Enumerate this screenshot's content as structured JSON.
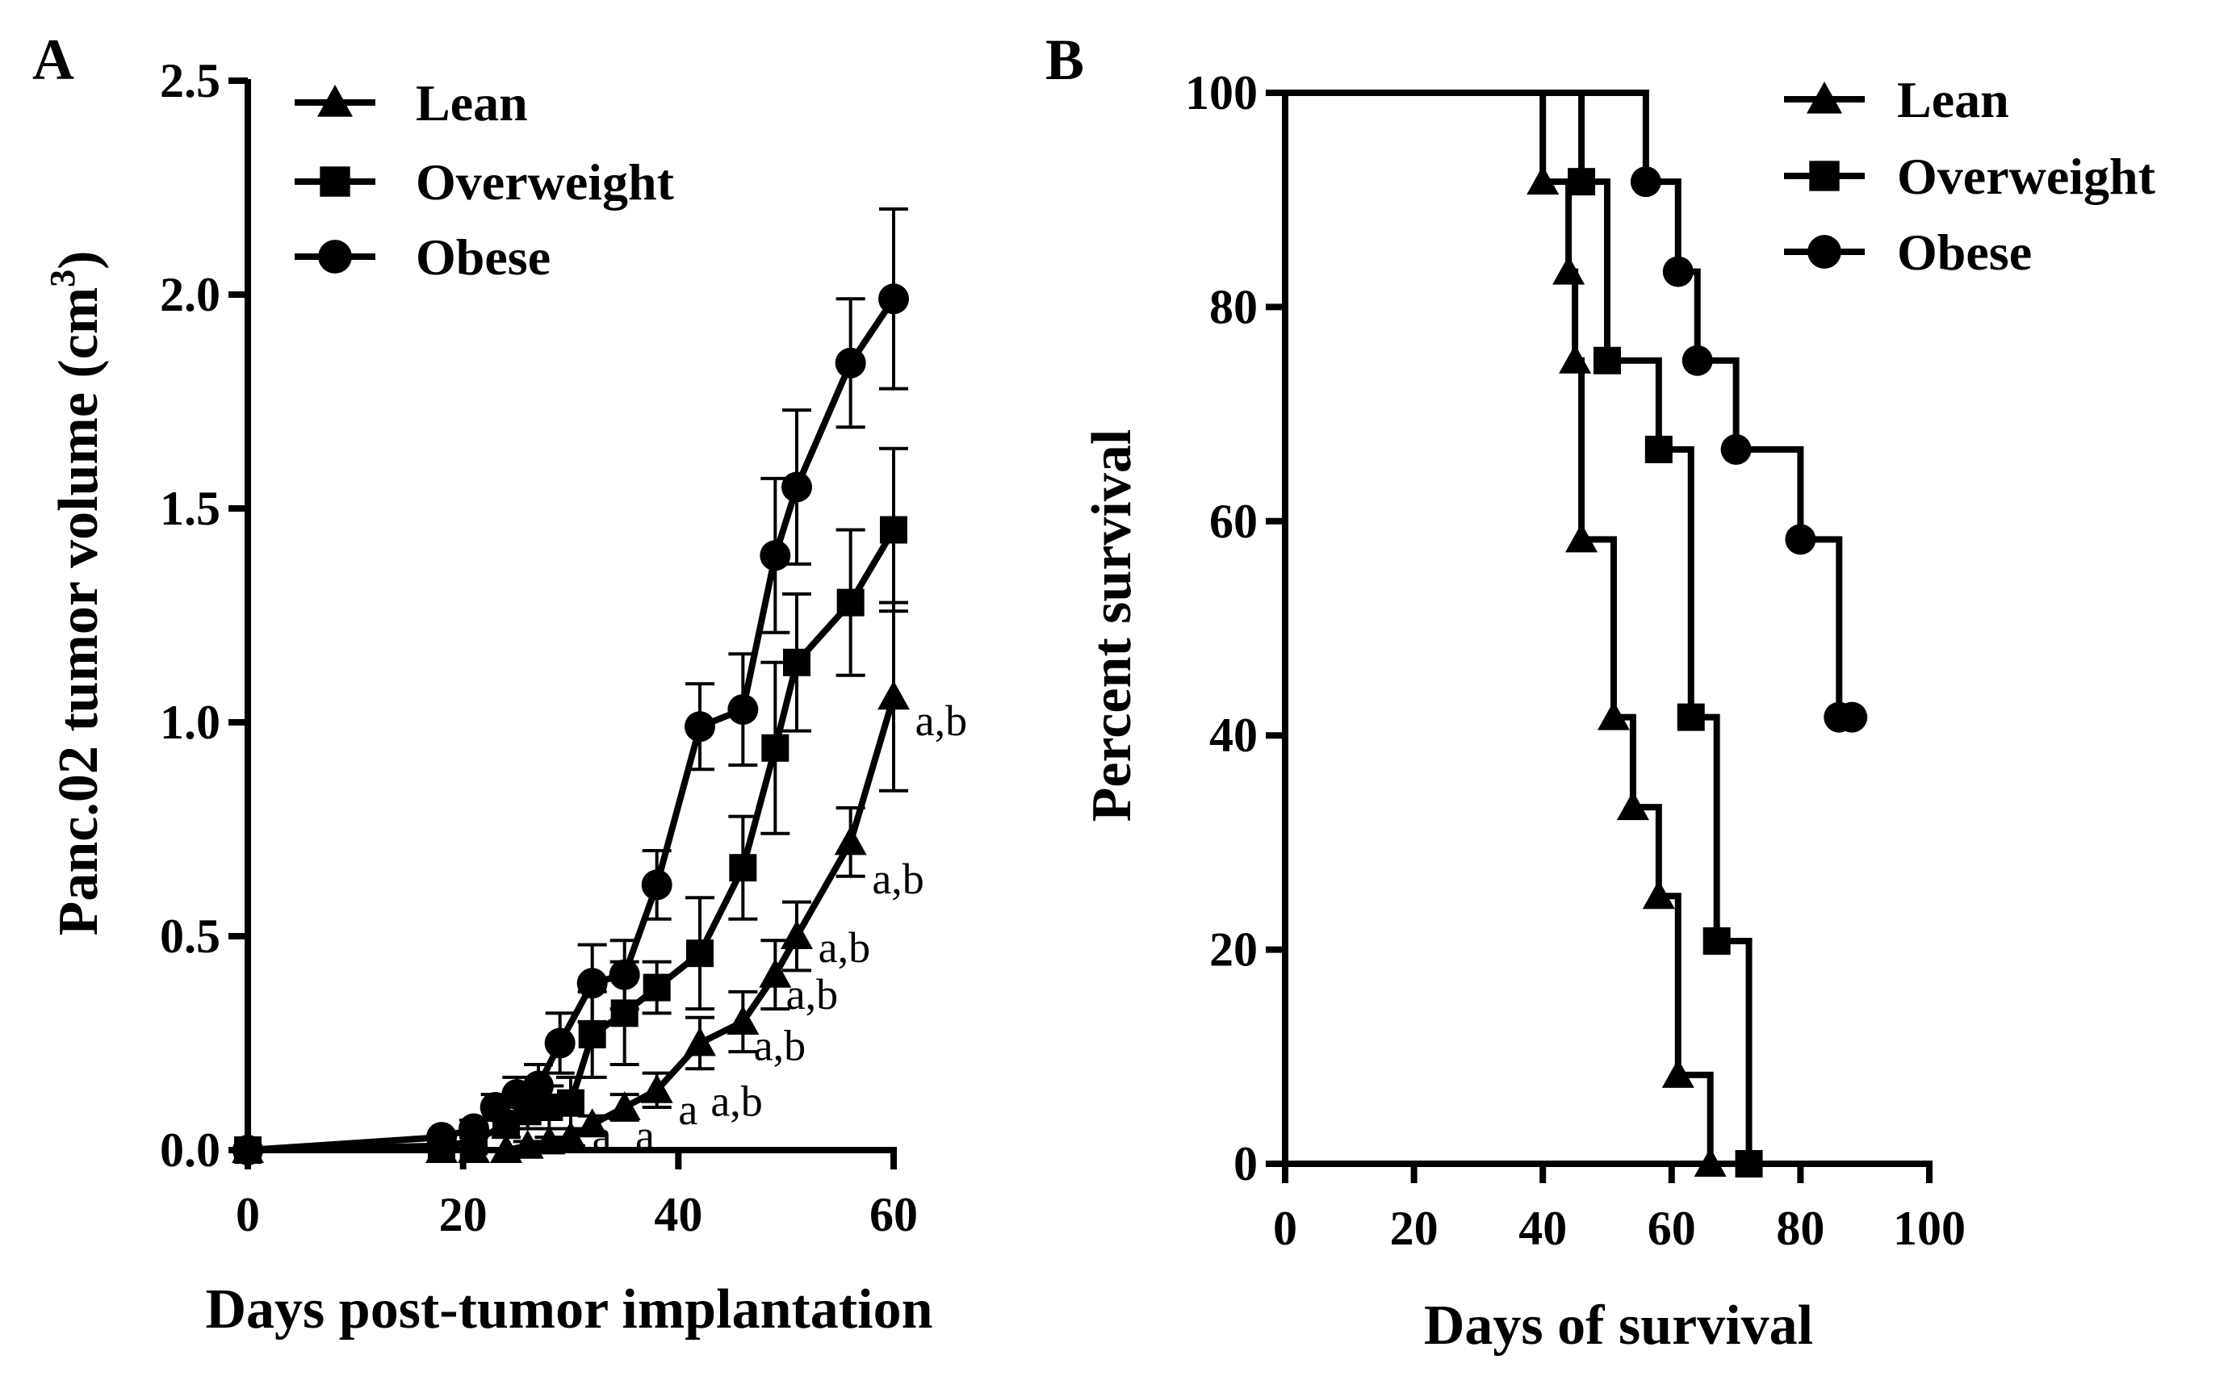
{
  "chart_data": [
    {
      "panel": "A",
      "type": "line",
      "xlabel": "Days post-tumor implantation",
      "ylabel": "Panc.02 tumor volume (cm",
      "ylabel_sup": "3",
      "ylabel_close": ")",
      "xlim": [
        0,
        60
      ],
      "ylim": [
        0,
        2.5
      ],
      "xticks": [
        "0",
        "20",
        "40",
        "60"
      ],
      "yticks": [
        "0.0",
        "0.5",
        "1.0",
        "1.5",
        "2.0",
        "2.5"
      ],
      "legend_position": "top-left",
      "series": [
        {
          "name": "Lean",
          "marker": "triangle",
          "x": [
            0,
            18,
            21,
            24,
            26,
            28,
            30,
            32,
            35,
            38,
            42,
            46,
            49,
            51,
            56,
            60
          ],
          "y": [
            0.0,
            0.0,
            0.0,
            0.0,
            0.01,
            0.02,
            0.03,
            0.06,
            0.1,
            0.14,
            0.25,
            0.3,
            0.41,
            0.5,
            0.72,
            1.06
          ],
          "err": [
            0,
            0,
            0,
            0,
            0.01,
            0.01,
            0.02,
            0.02,
            0.03,
            0.04,
            0.06,
            0.07,
            0.08,
            0.08,
            0.08,
            0.22
          ]
        },
        {
          "name": "Overweight",
          "marker": "square",
          "x": [
            0,
            18,
            21,
            24,
            26,
            28,
            30,
            32,
            35,
            38,
            42,
            46,
            49,
            51,
            56,
            60
          ],
          "y": [
            0.0,
            0.01,
            0.02,
            0.06,
            0.09,
            0.1,
            0.11,
            0.27,
            0.32,
            0.38,
            0.46,
            0.66,
            0.94,
            1.14,
            1.28,
            1.45
          ],
          "err": [
            0,
            0.01,
            0.02,
            0.03,
            0.04,
            0.05,
            0.06,
            0.1,
            0.12,
            0.06,
            0.13,
            0.12,
            0.2,
            0.16,
            0.17,
            0.19
          ]
        },
        {
          "name": "Obese",
          "marker": "circle",
          "x": [
            0,
            18,
            21,
            23,
            25,
            27,
            29,
            32,
            35,
            38,
            42,
            46,
            49,
            51,
            56,
            60
          ],
          "y": [
            0.0,
            0.03,
            0.05,
            0.1,
            0.13,
            0.15,
            0.25,
            0.39,
            0.41,
            0.62,
            0.99,
            1.03,
            1.39,
            1.55,
            1.84,
            1.99
          ],
          "err": [
            0,
            0.01,
            0.02,
            0.03,
            0.04,
            0.05,
            0.07,
            0.09,
            0.08,
            0.08,
            0.1,
            0.13,
            0.18,
            0.18,
            0.15,
            0.21
          ]
        }
      ],
      "annotations": [
        {
          "text": "a",
          "x": 32,
          "y": 0.0
        },
        {
          "text": "a",
          "x": 36,
          "y": 0.0
        },
        {
          "text": "a",
          "x": 40,
          "y": 0.06
        },
        {
          "text": "a,b",
          "x": 43,
          "y": 0.08
        },
        {
          "text": "a,b",
          "x": 47,
          "y": 0.21
        },
        {
          "text": "a,b",
          "x": 50,
          "y": 0.33
        },
        {
          "text": "a,b",
          "x": 53,
          "y": 0.44
        },
        {
          "text": "a,b",
          "x": 58,
          "y": 0.6
        },
        {
          "text": "a,b",
          "x": 62,
          "y": 0.97
        }
      ]
    },
    {
      "panel": "B",
      "type": "line",
      "subtype": "kaplan-meier",
      "xlabel": "Days of survival",
      "ylabel": "Percent survival",
      "xlim": [
        0,
        100
      ],
      "ylim": [
        0,
        100
      ],
      "xticks": [
        "0",
        "20",
        "40",
        "60",
        "80",
        "100"
      ],
      "yticks": [
        "0",
        "20",
        "40",
        "60",
        "80",
        "100"
      ],
      "legend_position": "top-right",
      "series": [
        {
          "name": "Lean",
          "marker": "triangle",
          "steps": [
            [
              0,
              100
            ],
            [
              40,
              91.7
            ],
            [
              44,
              83.3
            ],
            [
              45,
              75
            ],
            [
              46,
              58.3
            ],
            [
              51,
              41.7
            ],
            [
              54,
              33.3
            ],
            [
              58,
              25
            ],
            [
              61,
              8.3
            ],
            [
              66,
              0
            ]
          ]
        },
        {
          "name": "Overweight",
          "marker": "square",
          "steps": [
            [
              0,
              100
            ],
            [
              46,
              91.7
            ],
            [
              50,
              75
            ],
            [
              58,
              66.7
            ],
            [
              63,
              41.7
            ],
            [
              67,
              20.8
            ],
            [
              72,
              0
            ]
          ]
        },
        {
          "name": "Obese",
          "marker": "circle",
          "steps": [
            [
              0,
              100
            ],
            [
              56,
              91.7
            ],
            [
              61,
              83.3
            ],
            [
              64,
              75
            ],
            [
              70,
              66.7
            ],
            [
              80,
              58.3
            ],
            [
              86,
              41.7
            ],
            [
              88,
              41.7
            ]
          ]
        }
      ]
    }
  ]
}
